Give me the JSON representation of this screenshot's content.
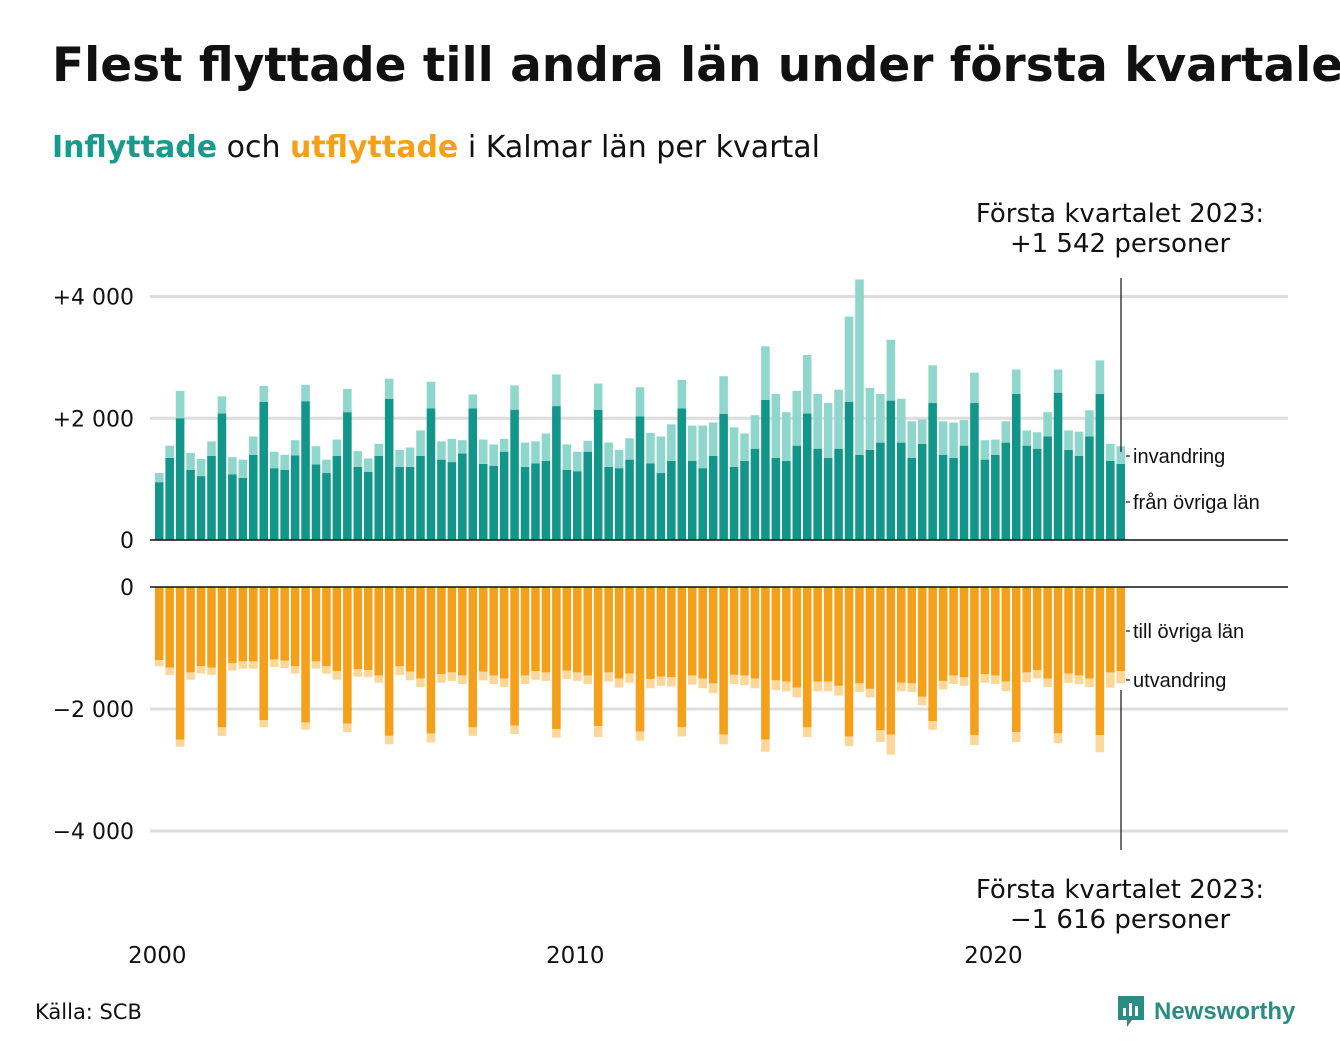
{
  "title": "Flest flyttade till andra län under första kvartalet",
  "subtitle": {
    "in_word": "Inflyttade",
    "mid": "och",
    "out_word": "utflyttade",
    "rest": "i Kalmar län per kvartal"
  },
  "source": "Källa: SCB",
  "logo": {
    "text": "Newsworthy",
    "icon": "newsworthy-bar-icon"
  },
  "colors": {
    "in_dark": "#12968a",
    "in_light": "#8fd6cc",
    "out_dark": "#f5a01b",
    "out_light": "#fbd79a",
    "grid": "#dddddd",
    "axis": "#111111"
  },
  "chart_data": {
    "type": "bar",
    "x_tick_labels": [
      "2000",
      "2010",
      "2020"
    ],
    "x_ticks": [
      2000,
      2010,
      2020
    ],
    "top": {
      "ylim": [
        0,
        4300
      ],
      "y_ticks": [
        0,
        2000,
        4000
      ],
      "y_tick_labels": [
        "0",
        "+2 000",
        "+4 000"
      ],
      "annotation": [
        "Första kvartalet 2023:",
        "+1 542 personer"
      ],
      "series_labels": {
        "light": "invandring",
        "dark": "från övriga län"
      },
      "series": [
        {
          "name": "från övriga län",
          "values": [
            950,
            1350,
            2000,
            1150,
            1050,
            1380,
            2080,
            1080,
            1020,
            1400,
            2270,
            1180,
            1150,
            1390,
            2280,
            1240,
            1100,
            1380,
            2100,
            1200,
            1120,
            1380,
            2320,
            1200,
            1200,
            1380,
            2160,
            1320,
            1280,
            1420,
            2160,
            1250,
            1220,
            1450,
            2140,
            1200,
            1260,
            1300,
            2200,
            1150,
            1130,
            1450,
            2140,
            1200,
            1180,
            1320,
            2030,
            1260,
            1100,
            1300,
            2160,
            1300,
            1180,
            1380,
            2070,
            1200,
            1300,
            1500,
            2300,
            1350,
            1300,
            1550,
            2080,
            1500,
            1350,
            1500,
            2270,
            1400,
            1480,
            1600,
            2290,
            1600,
            1350,
            1580,
            2250,
            1400,
            1350,
            1550,
            2250,
            1320,
            1400,
            1600,
            2400,
            1550,
            1500,
            1700,
            2420,
            1480,
            1380,
            1700,
            2400,
            1300,
            1250
          ]
        },
        {
          "name": "invandring",
          "values": [
            150,
            200,
            450,
            280,
            280,
            240,
            280,
            280,
            300,
            300,
            260,
            270,
            250,
            250,
            270,
            300,
            220,
            270,
            380,
            260,
            220,
            200,
            330,
            280,
            320,
            420,
            440,
            300,
            380,
            220,
            230,
            400,
            350,
            210,
            400,
            400,
            360,
            450,
            520,
            420,
            320,
            180,
            430,
            400,
            300,
            350,
            480,
            500,
            600,
            600,
            470,
            580,
            700,
            550,
            620,
            650,
            450,
            550,
            880,
            1050,
            800,
            900,
            960,
            900,
            900,
            970,
            1400,
            2880,
            1020,
            800,
            1000,
            720,
            600,
            400,
            620,
            550,
            580,
            420,
            500,
            320,
            250,
            350,
            400,
            250,
            270,
            400,
            380,
            320,
            400,
            430,
            550,
            280,
            290
          ]
        }
      ]
    },
    "bottom": {
      "ylim": [
        -4300,
        0
      ],
      "y_ticks": [
        0,
        -2000,
        -4000
      ],
      "y_tick_labels": [
        "0",
        "−2 000",
        "−4 000"
      ],
      "annotation": [
        "Första kvartalet 2023:",
        "−1 616 personer"
      ],
      "series_labels": {
        "dark": "till övriga län",
        "light": "utvandring"
      },
      "series": [
        {
          "name": "till övriga län",
          "values": [
            -1200,
            -1320,
            -2500,
            -1400,
            -1300,
            -1320,
            -2300,
            -1250,
            -1220,
            -1220,
            -2180,
            -1190,
            -1210,
            -1300,
            -2220,
            -1220,
            -1300,
            -1380,
            -2240,
            -1350,
            -1360,
            -1450,
            -2440,
            -1300,
            -1390,
            -1500,
            -2400,
            -1430,
            -1400,
            -1450,
            -2300,
            -1390,
            -1450,
            -1500,
            -2270,
            -1450,
            -1380,
            -1400,
            -2330,
            -1370,
            -1400,
            -1450,
            -2280,
            -1400,
            -1500,
            -1420,
            -2370,
            -1510,
            -1470,
            -1480,
            -2300,
            -1450,
            -1500,
            -1580,
            -2420,
            -1440,
            -1450,
            -1500,
            -2500,
            -1530,
            -1550,
            -1650,
            -2300,
            -1550,
            -1550,
            -1620,
            -2450,
            -1580,
            -1670,
            -2350,
            -2420,
            -1570,
            -1580,
            -1800,
            -2200,
            -1540,
            -1450,
            -1480,
            -2430,
            -1430,
            -1450,
            -1550,
            -2380,
            -1400,
            -1360,
            -1500,
            -2400,
            -1420,
            -1450,
            -1500,
            -2430,
            -1400,
            -1380
          ]
        },
        {
          "name": "utvandring",
          "values": [
            -100,
            -120,
            -120,
            -120,
            -120,
            -120,
            -140,
            -120,
            -120,
            -120,
            -120,
            -120,
            -120,
            -120,
            -120,
            -120,
            -120,
            -140,
            -140,
            -120,
            -120,
            -120,
            -140,
            -140,
            -140,
            -140,
            -150,
            -140,
            -140,
            -140,
            -140,
            -140,
            -140,
            -140,
            -140,
            -140,
            -140,
            -140,
            -140,
            -140,
            -140,
            -140,
            -180,
            -150,
            -150,
            -150,
            -150,
            -150,
            -150,
            -150,
            -150,
            -150,
            -160,
            -160,
            -160,
            -150,
            -160,
            -160,
            -200,
            -160,
            -160,
            -160,
            -160,
            -160,
            -160,
            -160,
            -160,
            -140,
            -140,
            -190,
            -330,
            -140,
            -140,
            -140,
            -140,
            -140,
            -140,
            -140,
            -160,
            -140,
            -140,
            -160,
            -160,
            -160,
            -140,
            -140,
            -160,
            -150,
            -140,
            -140,
            -280,
            -250,
            -200
          ]
        }
      ]
    }
  }
}
